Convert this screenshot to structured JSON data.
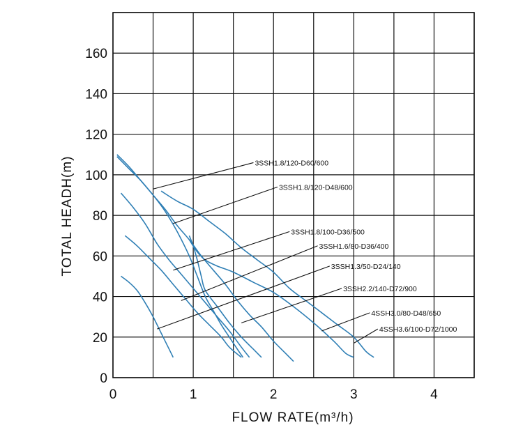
{
  "chart_data": {
    "type": "line",
    "xlabel": "FLOW RATE(m³/h)",
    "ylabel": "TOTAL HEADH(m)",
    "xlim": [
      0,
      4.5
    ],
    "ylim": [
      0,
      180
    ],
    "xticks": [
      0,
      1,
      2,
      3,
      4
    ],
    "yticks": [
      0,
      20,
      40,
      60,
      80,
      100,
      120,
      140,
      160
    ],
    "grid": true,
    "colors": {
      "curve": "#2f7fb5",
      "grid": "#111111"
    },
    "series": [
      {
        "name": "3SSH1.8/120-D60/600",
        "points": [
          [
            0.05,
            110
          ],
          [
            0.2,
            104
          ],
          [
            0.35,
            97
          ],
          [
            0.5,
            90
          ],
          [
            0.65,
            82
          ],
          [
            0.8,
            72
          ],
          [
            0.95,
            60
          ],
          [
            1.05,
            50
          ],
          [
            1.15,
            40
          ],
          [
            1.25,
            33
          ],
          [
            1.35,
            26
          ],
          [
            1.45,
            20
          ],
          [
            1.55,
            14
          ],
          [
            1.62,
            10
          ]
        ]
      },
      {
        "name": "3SSH1.8/120-D48/600",
        "points": [
          [
            0.05,
            109
          ],
          [
            0.2,
            103
          ],
          [
            0.35,
            97
          ],
          [
            0.5,
            90
          ],
          [
            0.65,
            83
          ],
          [
            0.8,
            75
          ],
          [
            0.95,
            68
          ],
          [
            1.1,
            60
          ],
          [
            1.25,
            53
          ],
          [
            1.4,
            46
          ],
          [
            1.55,
            38
          ],
          [
            1.7,
            31
          ],
          [
            1.85,
            25
          ],
          [
            2.0,
            18
          ],
          [
            2.15,
            12
          ],
          [
            2.25,
            8
          ]
        ]
      },
      {
        "name": "3SSH1.8/100-D36/500",
        "points": [
          [
            0.1,
            91
          ],
          [
            0.25,
            84
          ],
          [
            0.4,
            76
          ],
          [
            0.55,
            66
          ],
          [
            0.7,
            58
          ],
          [
            0.85,
            51
          ],
          [
            1.0,
            44
          ],
          [
            1.15,
            37
          ],
          [
            1.3,
            30
          ],
          [
            1.45,
            23
          ],
          [
            1.6,
            15
          ],
          [
            1.7,
            10
          ]
        ]
      },
      {
        "name": "3SSH1.6/80-D36/400",
        "points": [
          [
            0.15,
            70
          ],
          [
            0.3,
            65
          ],
          [
            0.45,
            59
          ],
          [
            0.6,
            53
          ],
          [
            0.75,
            46
          ],
          [
            0.9,
            39
          ],
          [
            1.05,
            32
          ],
          [
            1.2,
            26
          ],
          [
            1.35,
            20
          ],
          [
            1.45,
            15
          ],
          [
            1.6,
            10
          ]
        ]
      },
      {
        "name": "3SSH1.3/50-D24/140",
        "points": [
          [
            0.1,
            50
          ],
          [
            0.2,
            47
          ],
          [
            0.3,
            43
          ],
          [
            0.4,
            37
          ],
          [
            0.5,
            30
          ],
          [
            0.6,
            22
          ],
          [
            0.7,
            14
          ],
          [
            0.75,
            10
          ]
        ]
      },
      {
        "name": "3SSH2.2/140-D72/900",
        "points": [
          [
            0.95,
            70
          ],
          [
            1.0,
            65
          ],
          [
            1.05,
            58
          ],
          [
            1.1,
            50
          ],
          [
            1.15,
            43
          ],
          [
            1.3,
            35
          ],
          [
            1.45,
            27
          ],
          [
            1.6,
            20
          ],
          [
            1.75,
            14
          ],
          [
            1.85,
            10
          ]
        ]
      },
      {
        "name": "4SSH3.0/80-D48/650",
        "points": [
          [
            0.95,
            68
          ],
          [
            1.05,
            62
          ],
          [
            1.15,
            58
          ],
          [
            1.3,
            55
          ],
          [
            1.5,
            52
          ],
          [
            1.75,
            47
          ],
          [
            2.0,
            42
          ],
          [
            2.25,
            35
          ],
          [
            2.5,
            27
          ],
          [
            2.75,
            18
          ],
          [
            2.9,
            12
          ],
          [
            3.0,
            10
          ]
        ]
      },
      {
        "name": "4SSH3.6/100-D72/1000",
        "points": [
          [
            0.6,
            92
          ],
          [
            0.8,
            87
          ],
          [
            1.0,
            83
          ],
          [
            1.2,
            77
          ],
          [
            1.4,
            71
          ],
          [
            1.6,
            64
          ],
          [
            1.8,
            58
          ],
          [
            2.0,
            52
          ],
          [
            2.2,
            44
          ],
          [
            2.4,
            38
          ],
          [
            2.6,
            32
          ],
          [
            2.8,
            26
          ],
          [
            3.0,
            20
          ],
          [
            3.15,
            13
          ],
          [
            3.25,
            10
          ]
        ]
      }
    ],
    "annotations": [
      {
        "text": "3SSH1.8/120-D60/600",
        "from": [
          0.5,
          93
        ],
        "to": [
          1.75,
          106
        ]
      },
      {
        "text": "3SSH1.8/120-D48/600",
        "from": [
          0.75,
          76
        ],
        "to": [
          2.05,
          94
        ]
      },
      {
        "text": "3SSH1.8/100-D36/500",
        "from": [
          0.75,
          53
        ],
        "to": [
          2.2,
          72
        ]
      },
      {
        "text": "3SSH1.6/80-D36/400",
        "from": [
          0.85,
          38
        ],
        "to": [
          2.55,
          65
        ]
      },
      {
        "text": "3SSH1.3/50-D24/140",
        "from": [
          0.55,
          24
        ],
        "to": [
          2.7,
          55
        ]
      },
      {
        "text": "3SSH2.2/140-D72/900",
        "from": [
          1.6,
          27
        ],
        "to": [
          2.85,
          44
        ]
      },
      {
        "text": "4SSH3.0/80-D48/650",
        "from": [
          2.6,
          23
        ],
        "to": [
          3.2,
          32
        ]
      },
      {
        "text": "4SSH3.6/100-D72/1000",
        "from": [
          3.0,
          17
        ],
        "to": [
          3.3,
          24
        ]
      }
    ]
  }
}
